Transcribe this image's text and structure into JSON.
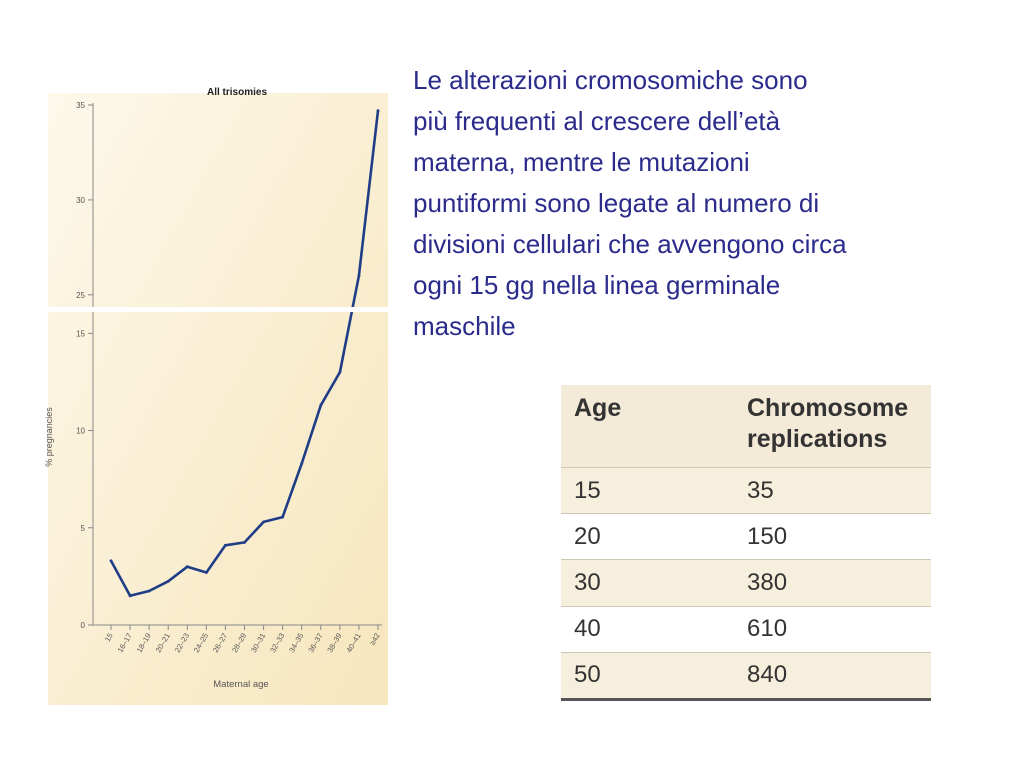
{
  "caption": "Le alterazioni cromosomiche sono\npiù frequenti al crescere dell’età\nmaterna, mentre le mutazioni\npuntiformi sono legate al numero di\ndivisioni cellulari che avvengono circa\nogni 15 gg nella linea germinale\nmaschile",
  "chart_data": {
    "type": "line",
    "title": "All trisomies",
    "xlabel": "Maternal age",
    "ylabel": "% pregnancies",
    "categories": [
      "15",
      "16–17",
      "18–19",
      "20–21",
      "22–23",
      "24–25",
      "26–27",
      "28–29",
      "30–31",
      "32–33",
      "34–35",
      "36–37",
      "38–39",
      "40–41",
      "≥42"
    ],
    "values": [
      3.3,
      1.5,
      1.75,
      2.25,
      3.0,
      2.7,
      4.1,
      4.25,
      5.3,
      5.55,
      8.3,
      11.3,
      13.0,
      26.0,
      34.7
    ],
    "y_ticks": [
      "0",
      "5",
      "10",
      "15",
      "25",
      "30",
      "35"
    ],
    "y_axis_break": {
      "lower_range": [
        0,
        16.2
      ],
      "upper_range": [
        24.2,
        35
      ]
    },
    "line_color": "#1f3d87",
    "background_gradient": [
      "#fdf8ea",
      "#f7e6bd"
    ],
    "grid": false,
    "legend": "none"
  },
  "table": {
    "headers": [
      "Age",
      "Chromosome\nreplications"
    ],
    "rows": [
      [
        "15",
        "35"
      ],
      [
        "20",
        "150"
      ],
      [
        "30",
        "380"
      ],
      [
        "40",
        "610"
      ],
      [
        "50",
        "840"
      ]
    ]
  }
}
